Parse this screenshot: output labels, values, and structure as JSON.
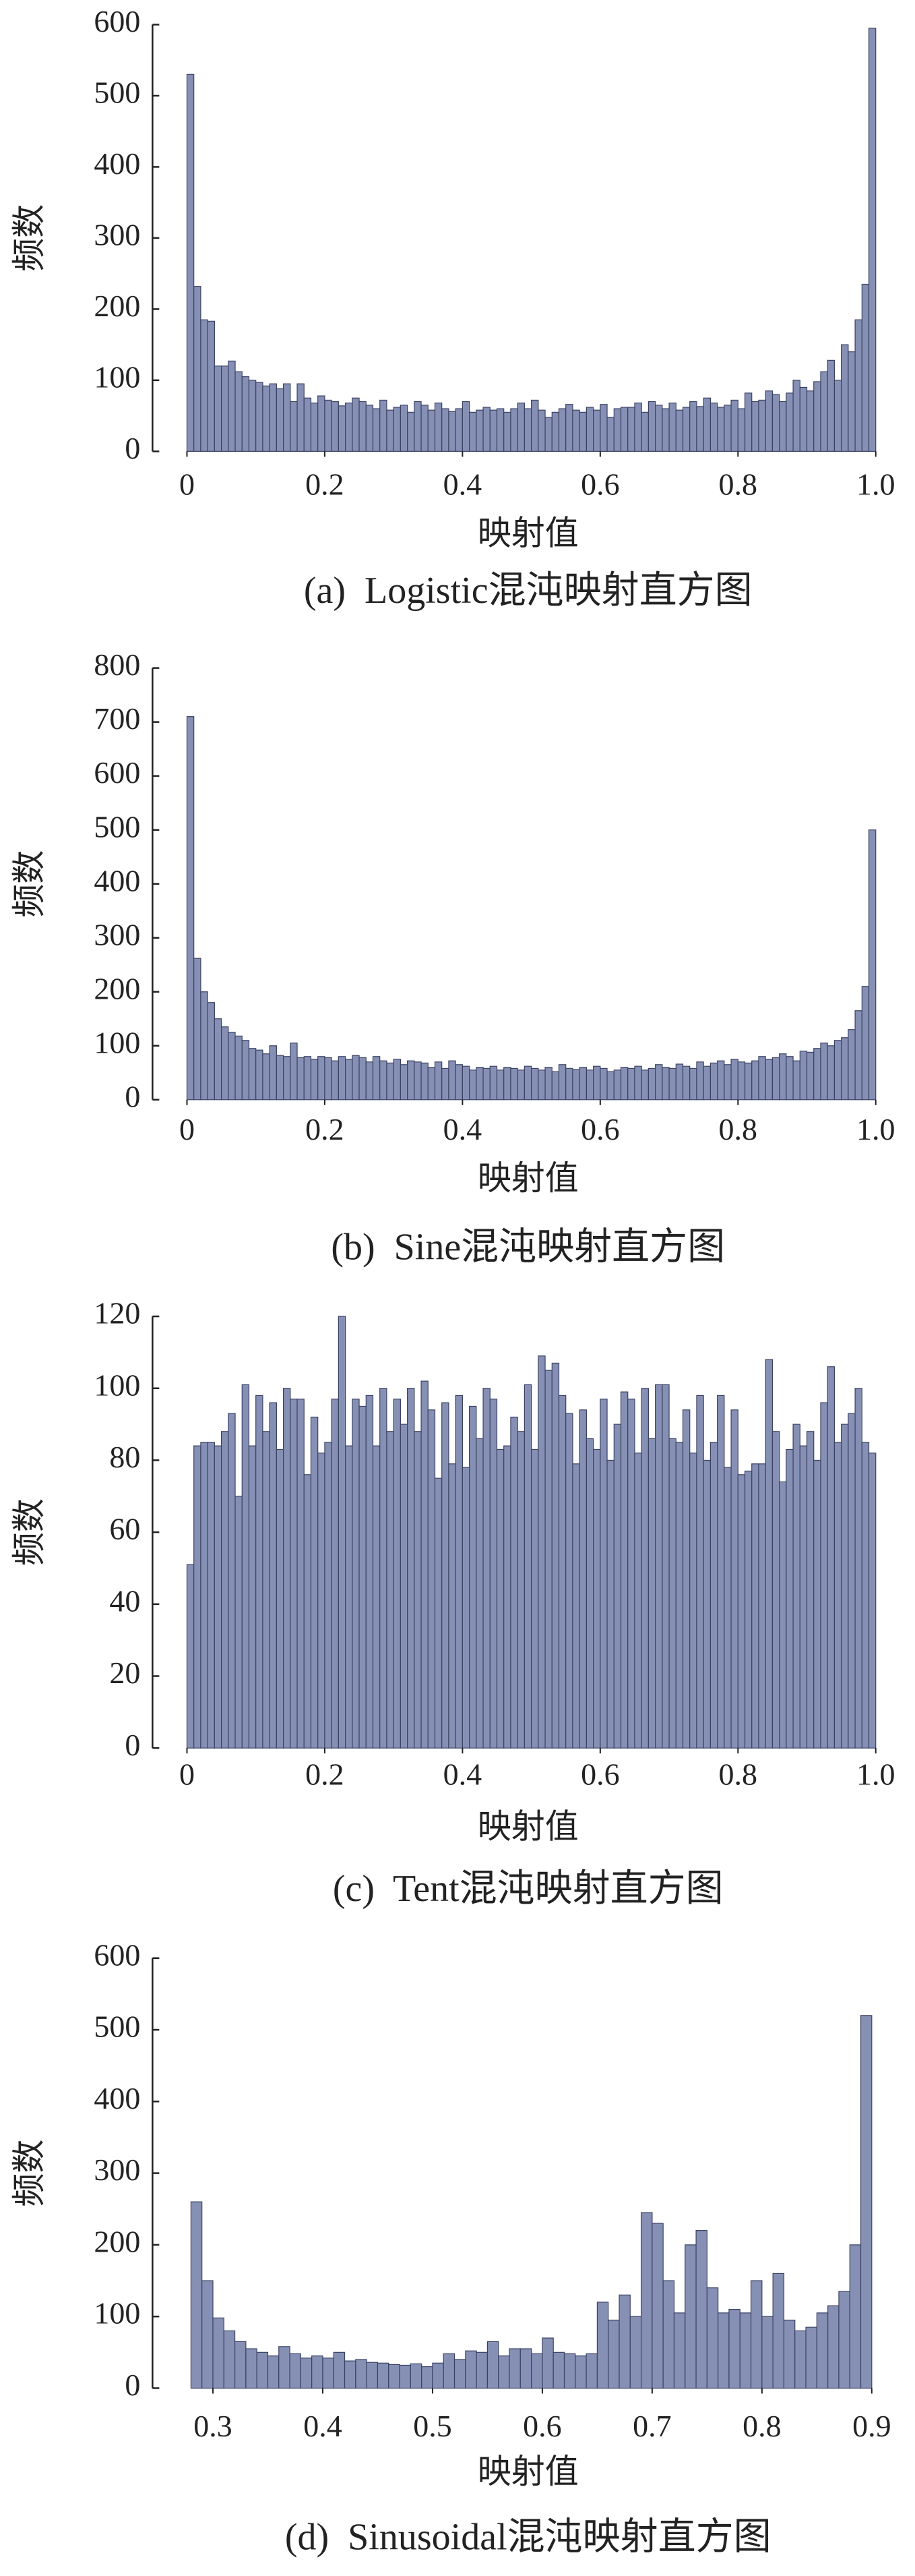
{
  "chart_data": [
    {
      "type": "histogram",
      "title": "(a)  Logistic混沌映射直方图",
      "xlabel": "映射值",
      "ylabel": "频数",
      "bins": [
        0,
        0.01,
        0.02,
        0.03,
        0.04,
        0.05,
        0.06,
        0.07,
        0.08,
        0.09,
        0.1,
        0.11,
        0.12,
        0.13,
        0.14,
        0.15,
        0.16,
        0.17,
        0.18,
        0.19,
        0.2,
        0.21,
        0.22,
        0.23,
        0.24,
        0.25,
        0.26,
        0.27,
        0.28,
        0.29,
        0.3,
        0.31,
        0.32,
        0.33,
        0.34,
        0.35,
        0.36,
        0.37,
        0.38,
        0.39,
        0.4,
        0.41,
        0.42,
        0.43,
        0.44,
        0.45,
        0.46,
        0.47,
        0.48,
        0.49,
        0.5,
        0.51,
        0.52,
        0.53,
        0.54,
        0.55,
        0.56,
        0.57,
        0.58,
        0.59,
        0.6,
        0.61,
        0.62,
        0.63,
        0.64,
        0.65,
        0.66,
        0.67,
        0.68,
        0.69,
        0.7,
        0.71,
        0.72,
        0.73,
        0.74,
        0.75,
        0.76,
        0.77,
        0.78,
        0.79,
        0.8,
        0.81,
        0.82,
        0.83,
        0.84,
        0.85,
        0.86,
        0.87,
        0.88,
        0.89,
        0.9,
        0.91,
        0.92,
        0.93,
        0.94,
        0.95,
        0.96,
        0.97,
        0.98,
        0.99,
        1
      ],
      "values": [
        530,
        232,
        185,
        183,
        120,
        120,
        127,
        112,
        105,
        100,
        97,
        92,
        95,
        88,
        95,
        70,
        95,
        75,
        68,
        78,
        72,
        70,
        64,
        68,
        75,
        70,
        65,
        60,
        72,
        58,
        62,
        65,
        55,
        70,
        65,
        58,
        68,
        60,
        56,
        60,
        70,
        55,
        58,
        62,
        58,
        60,
        55,
        60,
        68,
        60,
        72,
        58,
        48,
        55,
        60,
        66,
        58,
        55,
        62,
        58,
        66,
        48,
        60,
        62,
        62,
        68,
        55,
        70,
        65,
        60,
        68,
        58,
        62,
        70,
        63,
        75,
        68,
        62,
        65,
        72,
        60,
        82,
        70,
        72,
        85,
        80,
        70,
        82,
        100,
        90,
        85,
        98,
        112,
        128,
        100,
        150,
        140,
        185,
        235,
        595
      ],
      "xlim": [
        -0.05,
        1.05
      ],
      "ylim": [
        0,
        600
      ],
      "xticks": [
        0,
        0.2,
        0.4,
        0.6,
        0.8,
        {
          "value": 1,
          "label": "1.0"
        }
      ],
      "yticks": [
        0,
        100,
        200,
        300,
        400,
        500,
        600
      ],
      "color": "#8690b5"
    },
    {
      "type": "histogram",
      "title": "(b)  Sine混沌映射直方图",
      "xlabel": "映射值",
      "ylabel": "频数",
      "bins": [
        0,
        0.01,
        0.02,
        0.03,
        0.04,
        0.05,
        0.06,
        0.07,
        0.08,
        0.09,
        0.1,
        0.11,
        0.12,
        0.13,
        0.14,
        0.15,
        0.16,
        0.17,
        0.18,
        0.19,
        0.2,
        0.21,
        0.22,
        0.23,
        0.24,
        0.25,
        0.26,
        0.27,
        0.28,
        0.29,
        0.3,
        0.31,
        0.32,
        0.33,
        0.34,
        0.35,
        0.36,
        0.37,
        0.38,
        0.39,
        0.4,
        0.41,
        0.42,
        0.43,
        0.44,
        0.45,
        0.46,
        0.47,
        0.48,
        0.49,
        0.5,
        0.51,
        0.52,
        0.53,
        0.54,
        0.55,
        0.56,
        0.57,
        0.58,
        0.59,
        0.6,
        0.61,
        0.62,
        0.63,
        0.64,
        0.65,
        0.66,
        0.67,
        0.68,
        0.69,
        0.7,
        0.71,
        0.72,
        0.73,
        0.74,
        0.75,
        0.76,
        0.77,
        0.78,
        0.79,
        0.8,
        0.81,
        0.82,
        0.83,
        0.84,
        0.85,
        0.86,
        0.87,
        0.88,
        0.89,
        0.9,
        0.91,
        0.92,
        0.93,
        0.94,
        0.95,
        0.96,
        0.97,
        0.98,
        0.99,
        1
      ],
      "values": [
        710,
        262,
        200,
        180,
        150,
        135,
        125,
        118,
        110,
        95,
        92,
        85,
        100,
        82,
        80,
        105,
        78,
        80,
        75,
        80,
        78,
        72,
        80,
        75,
        82,
        78,
        70,
        80,
        72,
        68,
        75,
        65,
        72,
        70,
        68,
        60,
        70,
        58,
        72,
        65,
        62,
        55,
        60,
        58,
        62,
        55,
        60,
        58,
        55,
        62,
        58,
        55,
        60,
        52,
        65,
        58,
        56,
        60,
        55,
        62,
        58,
        52,
        55,
        60,
        58,
        62,
        55,
        58,
        65,
        60,
        58,
        66,
        62,
        58,
        70,
        62,
        68,
        72,
        65,
        75,
        70,
        68,
        72,
        80,
        75,
        78,
        85,
        80,
        72,
        90,
        88,
        95,
        105,
        100,
        110,
        115,
        130,
        165,
        210,
        500
      ],
      "xlim": [
        -0.05,
        1.05
      ],
      "ylim": [
        0,
        800
      ],
      "xticks": [
        0,
        0.2,
        0.4,
        0.6,
        0.8,
        {
          "value": 1,
          "label": "1.0"
        }
      ],
      "yticks": [
        0,
        100,
        200,
        300,
        400,
        500,
        600,
        700,
        800
      ],
      "color": "#8690b5"
    },
    {
      "type": "histogram",
      "title": "(c)  Tent混沌映射直方图",
      "xlabel": "映射值",
      "ylabel": "频数",
      "bins": [
        0,
        0.01,
        0.02,
        0.03,
        0.04,
        0.05,
        0.06,
        0.07,
        0.08,
        0.09,
        0.1,
        0.11,
        0.12,
        0.13,
        0.14,
        0.15,
        0.16,
        0.17,
        0.18,
        0.19,
        0.2,
        0.21,
        0.22,
        0.23,
        0.24,
        0.25,
        0.26,
        0.27,
        0.28,
        0.29,
        0.3,
        0.31,
        0.32,
        0.33,
        0.34,
        0.35,
        0.36,
        0.37,
        0.38,
        0.39,
        0.4,
        0.41,
        0.42,
        0.43,
        0.44,
        0.45,
        0.46,
        0.47,
        0.48,
        0.49,
        0.5,
        0.51,
        0.52,
        0.53,
        0.54,
        0.55,
        0.56,
        0.57,
        0.58,
        0.59,
        0.6,
        0.61,
        0.62,
        0.63,
        0.64,
        0.65,
        0.66,
        0.67,
        0.68,
        0.69,
        0.7,
        0.71,
        0.72,
        0.73,
        0.74,
        0.75,
        0.76,
        0.77,
        0.78,
        0.79,
        0.8,
        0.81,
        0.82,
        0.83,
        0.84,
        0.85,
        0.86,
        0.87,
        0.88,
        0.89,
        0.9,
        0.91,
        0.92,
        0.93,
        0.94,
        0.95,
        0.96,
        0.97,
        0.98,
        0.99,
        1
      ],
      "values": [
        51,
        84,
        85,
        85,
        84,
        88,
        93,
        70,
        101,
        84,
        98,
        88,
        96,
        83,
        100,
        97,
        97,
        76,
        92,
        82,
        85,
        97,
        120,
        84,
        97,
        95,
        98,
        84,
        100,
        88,
        97,
        90,
        100,
        88,
        102,
        94,
        75,
        96,
        79,
        98,
        78,
        95,
        86,
        100,
        97,
        83,
        84,
        92,
        88,
        101,
        83,
        109,
        105,
        107,
        98,
        93,
        79,
        94,
        86,
        83,
        97,
        80,
        90,
        99,
        97,
        82,
        100,
        86,
        101,
        101,
        86,
        85,
        94,
        82,
        98,
        80,
        85,
        98,
        78,
        94,
        76,
        77,
        79,
        79,
        108,
        88,
        74,
        83,
        90,
        84,
        88,
        80,
        96,
        106,
        85,
        90,
        93,
        100,
        85,
        82
      ],
      "xlim": [
        -0.05,
        1.05
      ],
      "ylim": [
        0,
        120
      ],
      "xticks": [
        0,
        0.2,
        0.4,
        0.6,
        0.8,
        {
          "value": 1,
          "label": "1.0"
        }
      ],
      "yticks": [
        0,
        20,
        40,
        60,
        80,
        100,
        120
      ],
      "color": "#8690b5"
    },
    {
      "type": "histogram",
      "title": "(d)  Sinusoidal混沌映射直方图",
      "xlabel": "映射值",
      "ylabel": "频数",
      "bins": [
        0.28,
        0.29,
        0.3,
        0.31,
        0.32,
        0.33,
        0.34,
        0.35,
        0.36,
        0.37,
        0.38,
        0.39,
        0.4,
        0.41,
        0.42,
        0.43,
        0.44,
        0.45,
        0.46,
        0.47,
        0.48,
        0.49,
        0.5,
        0.51,
        0.52,
        0.53,
        0.54,
        0.55,
        0.56,
        0.57,
        0.58,
        0.59,
        0.6,
        0.61,
        0.62,
        0.63,
        0.64,
        0.65,
        0.66,
        0.67,
        0.68,
        0.69,
        0.7,
        0.71,
        0.72,
        0.73,
        0.74,
        0.75,
        0.76,
        0.77,
        0.78,
        0.79,
        0.8,
        0.81,
        0.82,
        0.83,
        0.84,
        0.85,
        0.86,
        0.87,
        0.88,
        0.89,
        0.9
      ],
      "values": [
        260,
        150,
        98,
        80,
        65,
        55,
        50,
        45,
        58,
        48,
        42,
        45,
        42,
        50,
        38,
        40,
        36,
        35,
        33,
        32,
        34,
        30,
        35,
        48,
        40,
        52,
        50,
        65,
        45,
        55,
        55,
        48,
        70,
        50,
        48,
        45,
        48,
        120,
        95,
        130,
        100,
        245,
        230,
        150,
        105,
        200,
        220,
        140,
        105,
        110,
        105,
        150,
        100,
        160,
        95,
        80,
        85,
        105,
        115,
        135,
        200,
        520
      ],
      "xlim": [
        0.245,
        0.935
      ],
      "ylim": [
        0,
        600
      ],
      "xticks": [
        0.3,
        0.4,
        0.5,
        0.6,
        0.7,
        0.8,
        0.9
      ],
      "yticks": [
        0,
        100,
        200,
        300,
        400,
        500,
        600
      ],
      "color": "#8690b5"
    }
  ]
}
